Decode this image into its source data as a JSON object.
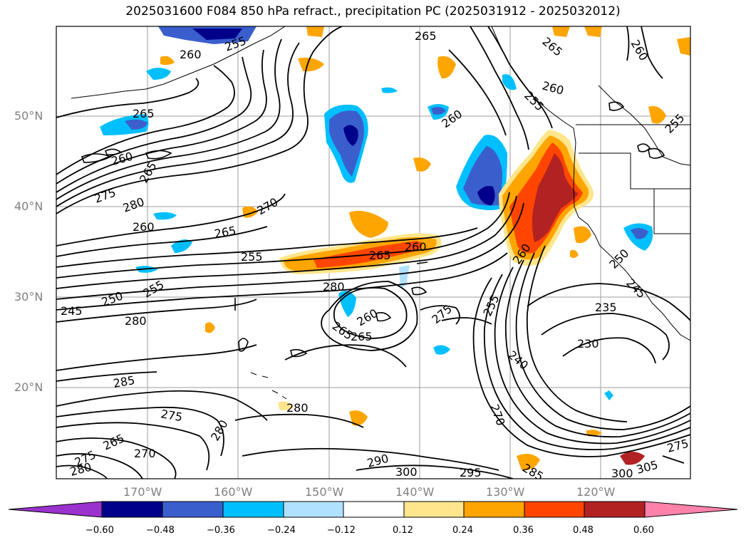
{
  "title": "2025031600 F084 850 hPa refract., precipitation PC (2025031912 - 2025032012)",
  "lat_labels": [
    "50°N",
    "40°N",
    "30°N",
    "20°N"
  ],
  "lon_labels": [
    "170°W",
    "160°W",
    "150°W",
    "140°W",
    "130°W",
    "120°W"
  ],
  "colorbar": {
    "ticks": [
      "−0.60",
      "−0.48",
      "−0.36",
      "−0.24",
      "−0.12",
      "0.12",
      "0.24",
      "0.36",
      "0.48",
      "0.60"
    ],
    "colors": [
      "#9a32cd",
      "#00008b",
      "#3a5fcd",
      "#00bfff",
      "#b0e2ff",
      "#ffffff",
      "#ffe68c",
      "#ffa500",
      "#ff4500",
      "#b22222",
      "#ff82ab"
    ]
  },
  "contour_labels": [
    "255",
    "260",
    "265",
    "265",
    "260",
    "265",
    "260",
    "260",
    "255",
    "265",
    "255",
    "260",
    "265",
    "260",
    "275",
    "280",
    "270",
    "260",
    "265",
    "255",
    "265",
    "260",
    "280",
    "255",
    "250",
    "245",
    "280",
    "260",
    "265",
    "270",
    "275",
    "255",
    "235",
    "230",
    "240",
    "250",
    "245",
    "285",
    "275",
    "280",
    "265",
    "270",
    "275",
    "280",
    "280",
    "290",
    "300",
    "295",
    "285",
    "305",
    "300",
    "275",
    "270"
  ]
}
